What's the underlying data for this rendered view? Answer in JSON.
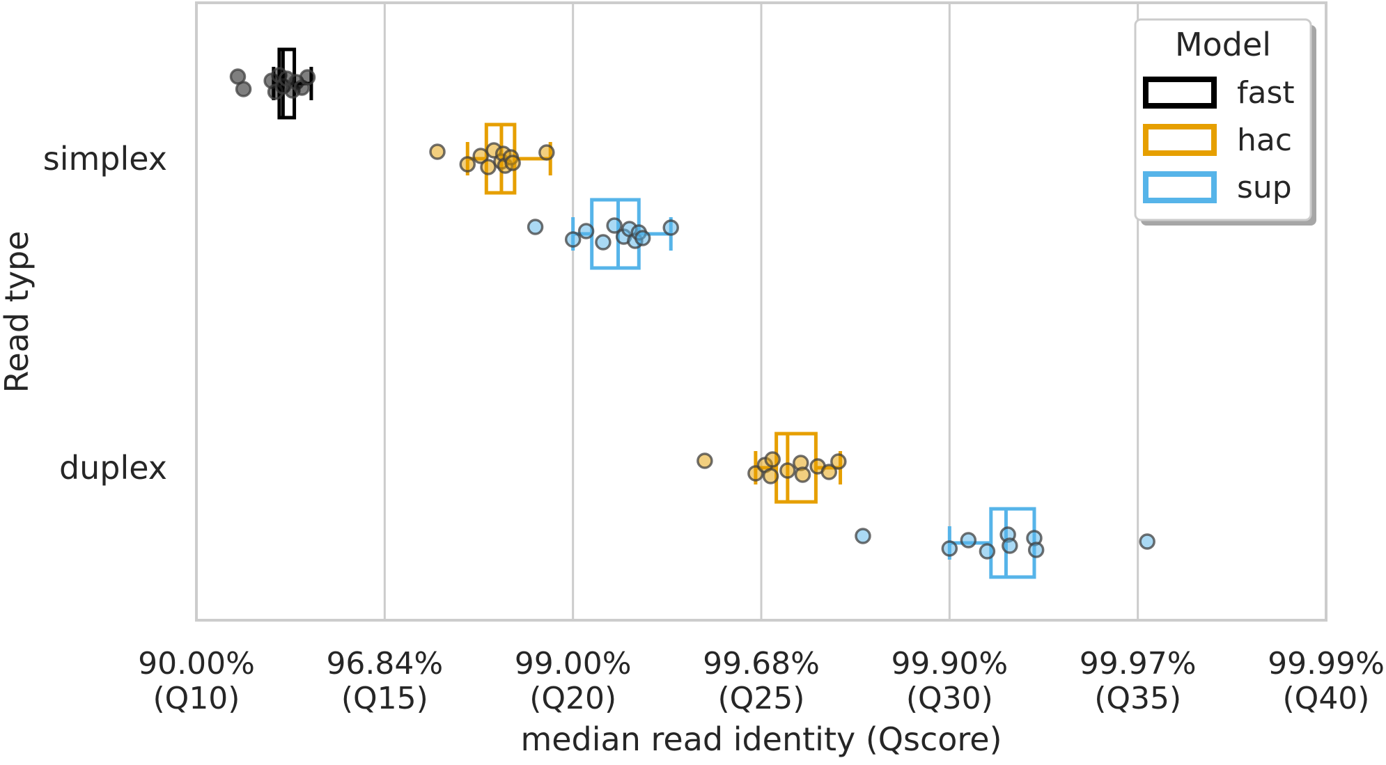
{
  "chart_data": {
    "type": "box",
    "xlabel": "median read identity (Qscore)",
    "ylabel": "Read type",
    "x_scale": "qscore",
    "xlim": [
      10,
      40
    ],
    "x_ticks": [
      {
        "q": 10,
        "line1": "90.00%",
        "line2": "(Q10)"
      },
      {
        "q": 15,
        "line1": "96.84%",
        "line2": "(Q15)"
      },
      {
        "q": 20,
        "line1": "99.00%",
        "line2": "(Q20)"
      },
      {
        "q": 25,
        "line1": "99.68%",
        "line2": "(Q25)"
      },
      {
        "q": 30,
        "line1": "99.90%",
        "line2": "(Q30)"
      },
      {
        "q": 35,
        "line1": "99.97%",
        "line2": "(Q35)"
      },
      {
        "q": 40,
        "line1": "99.99%",
        "line2": "(Q40)"
      }
    ],
    "categories": [
      "simplex",
      "duplex"
    ],
    "grid": "vertical",
    "legend": {
      "title": "Model",
      "position": "top-right"
    },
    "series": [
      {
        "name": "fast",
        "color": "#000000",
        "groups": [
          {
            "category": "simplex",
            "box": {
              "whisker_low": 12.05,
              "q1": 12.2,
              "median": 12.3,
              "q3": 12.6,
              "whisker_high": 13.05
            },
            "points": [
              11.1,
              11.25,
              12.0,
              12.1,
              12.2,
              12.3,
              12.4,
              12.55,
              12.65,
              12.8,
              12.95
            ]
          }
        ]
      },
      {
        "name": "hac",
        "color": "#E69F00",
        "groups": [
          {
            "category": "simplex",
            "box": {
              "whisker_low": 17.2,
              "q1": 17.7,
              "median": 18.1,
              "q3": 18.45,
              "whisker_high": 19.4
            },
            "points": [
              16.4,
              17.2,
              17.55,
              17.75,
              17.9,
              18.1,
              18.15,
              18.2,
              18.35,
              18.4,
              19.3
            ]
          },
          {
            "category": "duplex",
            "box": {
              "whisker_low": 24.85,
              "q1": 25.4,
              "median": 25.7,
              "q3": 26.45,
              "whisker_high": 27.1
            },
            "points": [
              23.5,
              24.85,
              25.1,
              25.25,
              25.3,
              25.7,
              26.05,
              26.1,
              26.5,
              26.8,
              27.05
            ]
          }
        ]
      },
      {
        "name": "sup",
        "color": "#56B4E9",
        "groups": [
          {
            "category": "simplex",
            "box": {
              "whisker_low": 20.0,
              "q1": 20.5,
              "median": 21.2,
              "q3": 21.75,
              "whisker_high": 22.6
            },
            "points": [
              19.0,
              20.0,
              20.35,
              20.8,
              21.1,
              21.35,
              21.5,
              21.65,
              21.75,
              21.85,
              22.6
            ]
          },
          {
            "category": "duplex",
            "box": {
              "whisker_low": 30.0,
              "q1": 31.1,
              "median": 31.5,
              "q3": 32.25,
              "whisker_high": 32.25
            },
            "points": [
              27.7,
              30.0,
              30.5,
              31.0,
              31.55,
              31.6,
              32.25,
              32.3,
              35.25
            ]
          }
        ]
      }
    ]
  }
}
